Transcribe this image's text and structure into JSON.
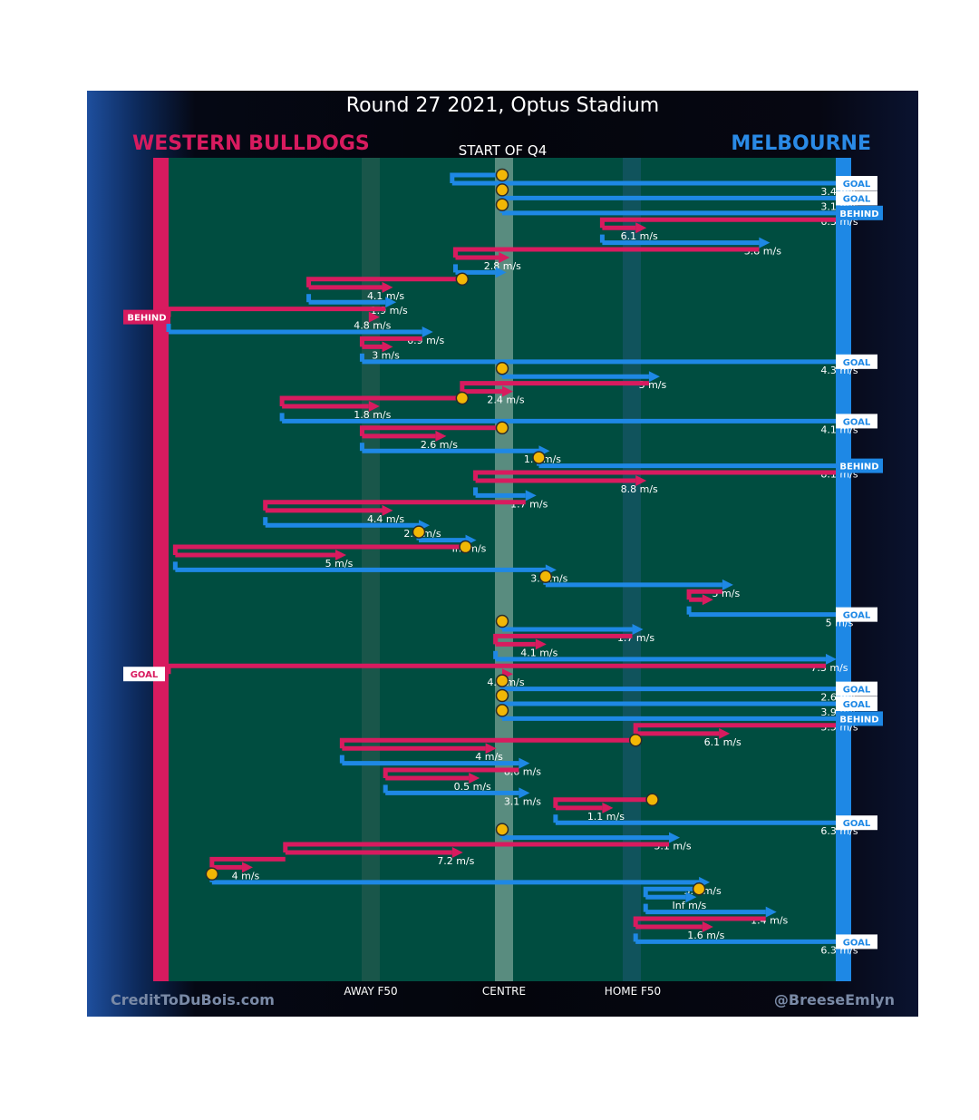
{
  "header": {
    "title": "Round 27 2021, Optus Stadium",
    "team_left": "WESTERN BULLDOGS",
    "team_right": "MELBOURNE",
    "period": "START OF Q4"
  },
  "footer": {
    "credit_left": "CreditToDuBois.com",
    "credit_right": "@BreeseEmlyn"
  },
  "colors": {
    "bulldogs": "#d81b5f",
    "melbourne": "#1e88e5",
    "field": "#004d40",
    "possession_marker": "#f2b705"
  },
  "chart_data": {
    "type": "line",
    "description_axis": "field position between goal lines",
    "x_tick_labels": [
      "AWAY F50",
      "CENTRE",
      "HOME F50"
    ],
    "grid": false,
    "legend": "none",
    "chains": [
      {
        "team": "MELBOURNE",
        "start_x": 0.0,
        "mid_x": -0.15,
        "end_x": 1.0,
        "speed": "3.4 m/s",
        "outcome": "GOAL",
        "start_marker": true
      },
      {
        "team": "MELBOURNE",
        "start_x": 0.0,
        "mid_x": 0.0,
        "end_x": 1.0,
        "speed": "3.1 m/s",
        "outcome": "GOAL",
        "start_marker": true
      },
      {
        "team": "MELBOURNE",
        "start_x": 0.0,
        "mid_x": 0.0,
        "end_x": 1.0,
        "speed": "6.3 m/s",
        "outcome": "BEHIND",
        "start_marker": true
      },
      {
        "team": "WESTERN BULLDOGS",
        "start_x": 1.0,
        "mid_x": 0.3,
        "end_x": 0.4,
        "speed": "6.1 m/s",
        "outcome": "",
        "start_marker": false
      },
      {
        "team": "MELBOURNE",
        "start_x": 0.3,
        "mid_x": 0.3,
        "end_x": 0.77,
        "speed": "3.8 m/s",
        "outcome": "",
        "start_marker": false
      },
      {
        "team": "WESTERN BULLDOGS",
        "start_x": 0.77,
        "mid_x": -0.14,
        "end_x": -0.01,
        "speed": "2.8 m/s",
        "outcome": "",
        "start_marker": false
      },
      {
        "team": "MELBOURNE",
        "start_x": -0.14,
        "mid_x": -0.14,
        "end_x": -0.02,
        "speed": "",
        "outcome": "",
        "start_marker": false
      },
      {
        "team": "WESTERN BULLDOGS",
        "start_x": -0.12,
        "mid_x": -0.58,
        "end_x": -0.36,
        "speed": "4.1 m/s",
        "outcome": "",
        "start_marker": true
      },
      {
        "team": "MELBOURNE",
        "start_x": -0.58,
        "mid_x": -0.58,
        "end_x": -0.35,
        "speed": "1.9 m/s",
        "outcome": "",
        "start_marker": false
      },
      {
        "team": "WESTERN BULLDOGS",
        "start_x": -0.35,
        "mid_x": -1.0,
        "end_x": -0.4,
        "speed": "4.8 m/s",
        "outcome": "BEHIND",
        "start_marker": false
      },
      {
        "team": "MELBOURNE",
        "start_x": -1.0,
        "mid_x": -1.0,
        "end_x": -0.24,
        "speed": "6.9 m/s",
        "outcome": "",
        "start_marker": false
      },
      {
        "team": "WESTERN BULLDOGS",
        "start_x": -0.24,
        "mid_x": -0.42,
        "end_x": -0.36,
        "speed": "3 m/s",
        "outcome": "",
        "start_marker": false
      },
      {
        "team": "MELBOURNE",
        "start_x": -0.42,
        "mid_x": -0.42,
        "end_x": 1.0,
        "speed": "4.3 m/s",
        "outcome": "GOAL",
        "start_marker": false
      },
      {
        "team": "MELBOURNE",
        "start_x": 0.0,
        "mid_x": 0.0,
        "end_x": 0.44,
        "speed": "3 m/s",
        "outcome": "",
        "start_marker": true
      },
      {
        "team": "WESTERN BULLDOGS",
        "start_x": 0.44,
        "mid_x": -0.12,
        "end_x": 0.0,
        "speed": "2.4 m/s",
        "outcome": "",
        "start_marker": false
      },
      {
        "team": "WESTERN BULLDOGS",
        "start_x": -0.12,
        "mid_x": -0.66,
        "end_x": -0.4,
        "speed": "1.8 m/s",
        "outcome": "",
        "start_marker": true
      },
      {
        "team": "MELBOURNE",
        "start_x": -0.66,
        "mid_x": -0.66,
        "end_x": 1.0,
        "speed": "4.1 m/s",
        "outcome": "GOAL",
        "start_marker": false
      },
      {
        "team": "WESTERN BULLDOGS",
        "start_x": 0.0,
        "mid_x": -0.42,
        "end_x": -0.2,
        "speed": "2.6 m/s",
        "outcome": "",
        "start_marker": true
      },
      {
        "team": "MELBOURNE",
        "start_x": -0.42,
        "mid_x": -0.42,
        "end_x": 0.11,
        "speed": "1.6 m/s",
        "outcome": "",
        "start_marker": false
      },
      {
        "team": "MELBOURNE",
        "start_x": 0.11,
        "mid_x": 0.11,
        "end_x": 1.0,
        "speed": "8.1 m/s",
        "outcome": "BEHIND",
        "start_marker": true
      },
      {
        "team": "WESTERN BULLDOGS",
        "start_x": 1.0,
        "mid_x": -0.08,
        "end_x": 0.4,
        "speed": "8.8 m/s",
        "outcome": "",
        "start_marker": false
      },
      {
        "team": "MELBOURNE",
        "start_x": -0.08,
        "mid_x": -0.08,
        "end_x": 0.07,
        "speed": "1.7 m/s",
        "outcome": "",
        "start_marker": false
      },
      {
        "team": "WESTERN BULLDOGS",
        "start_x": 0.07,
        "mid_x": -0.71,
        "end_x": -0.36,
        "speed": "4.4 m/s",
        "outcome": "",
        "start_marker": false
      },
      {
        "team": "MELBOURNE",
        "start_x": -0.71,
        "mid_x": -0.71,
        "end_x": -0.25,
        "speed": "2.2 m/s",
        "outcome": "",
        "start_marker": false
      },
      {
        "team": "MELBOURNE",
        "start_x": -0.25,
        "mid_x": -0.25,
        "end_x": -0.11,
        "speed": "Inf m/s",
        "outcome": "",
        "start_marker": true
      },
      {
        "team": "WESTERN BULLDOGS",
        "start_x": -0.11,
        "mid_x": -0.98,
        "end_x": -0.5,
        "speed": "5 m/s",
        "outcome": "",
        "start_marker": true
      },
      {
        "team": "MELBOURNE",
        "start_x": -0.98,
        "mid_x": -0.98,
        "end_x": 0.13,
        "speed": "3.5 m/s",
        "outcome": "",
        "start_marker": false
      },
      {
        "team": "MELBOURNE",
        "start_x": 0.13,
        "mid_x": 0.13,
        "end_x": 0.66,
        "speed": "5 m/s",
        "outcome": "",
        "start_marker": true
      },
      {
        "team": "WESTERN BULLDOGS",
        "start_x": 0.66,
        "mid_x": 0.56,
        "end_x": 0.6,
        "speed": "",
        "outcome": "",
        "start_marker": false
      },
      {
        "team": "MELBOURNE",
        "start_x": 0.56,
        "mid_x": 0.56,
        "end_x": 1.0,
        "speed": "5 m/s",
        "outcome": "GOAL",
        "start_marker": false
      },
      {
        "team": "MELBOURNE",
        "start_x": 0.0,
        "mid_x": 0.0,
        "end_x": 0.39,
        "speed": "1.7 m/s",
        "outcome": "",
        "start_marker": true
      },
      {
        "team": "WESTERN BULLDOGS",
        "start_x": 0.39,
        "mid_x": -0.02,
        "end_x": 0.1,
        "speed": "4.1 m/s",
        "outcome": "",
        "start_marker": false
      },
      {
        "team": "MELBOURNE",
        "start_x": -0.02,
        "mid_x": -0.02,
        "end_x": 0.97,
        "speed": "7.3 m/s",
        "outcome": "",
        "start_marker": false
      },
      {
        "team": "WESTERN BULLDOGS",
        "start_x": 0.97,
        "mid_x": -1.0,
        "end_x": 0.0,
        "speed": "4.9 m/s",
        "outcome": "GOAL",
        "start_marker": false
      },
      {
        "team": "MELBOURNE",
        "start_x": 0.0,
        "mid_x": 0.0,
        "end_x": 1.0,
        "speed": "2.6 m/s",
        "outcome": "GOAL",
        "start_marker": true
      },
      {
        "team": "MELBOURNE",
        "start_x": 0.0,
        "mid_x": 0.0,
        "end_x": 1.0,
        "speed": "3.9 m/s",
        "outcome": "GOAL",
        "start_marker": true
      },
      {
        "team": "MELBOURNE",
        "start_x": 0.0,
        "mid_x": 0.0,
        "end_x": 1.0,
        "speed": "5.5 m/s",
        "outcome": "BEHIND",
        "start_marker": true
      },
      {
        "team": "WESTERN BULLDOGS",
        "start_x": 1.0,
        "mid_x": 0.4,
        "end_x": 0.65,
        "speed": "6.1 m/s",
        "outcome": "",
        "start_marker": false
      },
      {
        "team": "WESTERN BULLDOGS",
        "start_x": 0.4,
        "mid_x": -0.48,
        "end_x": -0.05,
        "speed": "4 m/s",
        "outcome": "",
        "start_marker": true
      },
      {
        "team": "MELBOURNE",
        "start_x": -0.48,
        "mid_x": -0.48,
        "end_x": 0.05,
        "speed": "8.6 m/s",
        "outcome": "",
        "start_marker": false
      },
      {
        "team": "WESTERN BULLDOGS",
        "start_x": 0.05,
        "mid_x": -0.35,
        "end_x": -0.1,
        "speed": "0.5 m/s",
        "outcome": "",
        "start_marker": false
      },
      {
        "team": "MELBOURNE",
        "start_x": -0.35,
        "mid_x": -0.35,
        "end_x": 0.05,
        "speed": "3.1 m/s",
        "outcome": "",
        "start_marker": false
      },
      {
        "team": "WESTERN BULLDOGS",
        "start_x": 0.45,
        "mid_x": 0.16,
        "end_x": 0.3,
        "speed": "1.1 m/s",
        "outcome": "",
        "start_marker": true
      },
      {
        "team": "MELBOURNE",
        "start_x": 0.16,
        "mid_x": 0.16,
        "end_x": 1.0,
        "speed": "6.3 m/s",
        "outcome": "GOAL",
        "start_marker": false
      },
      {
        "team": "MELBOURNE",
        "start_x": 0.0,
        "mid_x": 0.0,
        "end_x": 0.5,
        "speed": "3.1 m/s",
        "outcome": "",
        "start_marker": true
      },
      {
        "team": "WESTERN BULLDOGS",
        "start_x": 0.5,
        "mid_x": -0.65,
        "end_x": -0.15,
        "speed": "7.2 m/s",
        "outcome": "",
        "start_marker": false
      },
      {
        "team": "WESTERN BULLDOGS",
        "start_x": -0.65,
        "mid_x": -0.87,
        "end_x": -0.78,
        "speed": "4 m/s",
        "outcome": "",
        "start_marker": false
      },
      {
        "team": "MELBOURNE",
        "start_x": -0.87,
        "mid_x": -0.87,
        "end_x": 0.59,
        "speed": "3.6 m/s",
        "outcome": "",
        "start_marker": true
      },
      {
        "team": "MELBOURNE",
        "start_x": 0.59,
        "mid_x": 0.43,
        "end_x": 0.55,
        "speed": "Inf m/s",
        "outcome": "",
        "start_marker": true
      },
      {
        "team": "MELBOURNE",
        "start_x": 0.43,
        "mid_x": 0.43,
        "end_x": 0.79,
        "speed": "1.4 m/s",
        "outcome": "",
        "start_marker": false
      },
      {
        "team": "WESTERN BULLDOGS",
        "start_x": 0.79,
        "mid_x": 0.4,
        "end_x": 0.6,
        "speed": "1.6 m/s",
        "outcome": "",
        "start_marker": false
      },
      {
        "team": "MELBOURNE",
        "start_x": 0.4,
        "mid_x": 0.4,
        "end_x": 1.0,
        "speed": "6.3 m/s",
        "outcome": "GOAL",
        "start_marker": false
      }
    ]
  }
}
